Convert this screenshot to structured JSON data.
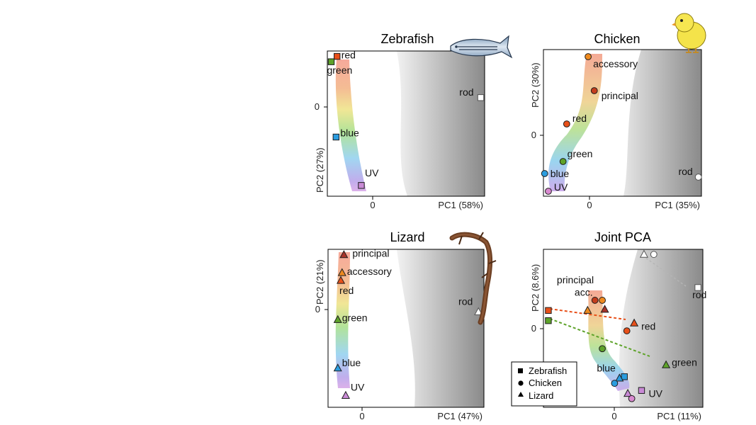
{
  "figure": {
    "axis_tick_zero": "0"
  },
  "legend": {
    "zebrafish": "Zebrafish",
    "chicken": "Chicken",
    "lizard": "Lizard"
  },
  "chart_data": [
    {
      "type": "scatter",
      "title": "Zebrafish",
      "xlabel": "PC1 (58%)",
      "ylabel": "PC2 (27%)",
      "xlim": [
        -0.62,
        1.0
      ],
      "ylim": [
        -1.0,
        0.62
      ],
      "icon": "zebrafish-icon",
      "points": [
        {
          "label": "red",
          "x": -0.52,
          "y": 0.56,
          "shape": "square",
          "color": "#e8501a"
        },
        {
          "label": "green",
          "x": -0.58,
          "y": 0.5,
          "shape": "square",
          "color": "#5ea32a"
        },
        {
          "label": "rod",
          "x": 0.96,
          "y": 0.1,
          "shape": "square",
          "color": "#ffffff"
        },
        {
          "label": "blue",
          "x": -0.53,
          "y": -0.34,
          "shape": "square",
          "color": "#2b9de0"
        },
        {
          "label": "UV",
          "x": -0.27,
          "y": -0.88,
          "shape": "square",
          "color": "#c98ad6"
        }
      ]
    },
    {
      "type": "scatter",
      "title": "Chicken",
      "xlabel": "PC1 (35%)",
      "ylabel": "PC2 (30%)",
      "xlim": [
        -0.68,
        1.9
      ],
      "ylim": [
        -0.82,
        1.25
      ],
      "icon": "chick-icon",
      "points": [
        {
          "label": "accessory",
          "x": 0.05,
          "y": 1.15,
          "shape": "circle",
          "color": "#ef8a1f"
        },
        {
          "label": "principal",
          "x": 0.15,
          "y": 0.67,
          "shape": "circle",
          "color": "#c43d1d"
        },
        {
          "label": "red",
          "x": -0.3,
          "y": 0.2,
          "shape": "circle",
          "color": "#e8501a"
        },
        {
          "label": "green",
          "x": -0.36,
          "y": -0.33,
          "shape": "circle",
          "color": "#5ea32a"
        },
        {
          "label": "blue",
          "x": -0.66,
          "y": -0.5,
          "shape": "circle",
          "color": "#2b9de0"
        },
        {
          "label": "UV",
          "x": -0.6,
          "y": -0.75,
          "shape": "circle",
          "color": "#d98ad0"
        },
        {
          "label": "rod",
          "x": 1.85,
          "y": -0.55,
          "shape": "circle",
          "color": "#ffffff"
        }
      ]
    },
    {
      "type": "scatter",
      "title": "Lizard",
      "xlabel": "PC1 (47%)",
      "ylabel": "PC2 (21%)",
      "xlim": [
        -0.52,
        2.04
      ],
      "ylim": [
        -1.2,
        0.82
      ],
      "icon": "lizard-icon",
      "points": [
        {
          "label": "principal",
          "x": -0.26,
          "y": 0.75,
          "shape": "triangle",
          "color": "#a8332a"
        },
        {
          "label": "accessory",
          "x": -0.29,
          "y": 0.52,
          "shape": "triangle",
          "color": "#ef8a1f"
        },
        {
          "label": "red",
          "x": -0.31,
          "y": 0.42,
          "shape": "triangle",
          "color": "#e8501a"
        },
        {
          "label": "green",
          "x": -0.36,
          "y": -0.08,
          "shape": "triangle",
          "color": "#5ea32a"
        },
        {
          "label": "blue",
          "x": -0.36,
          "y": -0.7,
          "shape": "triangle",
          "color": "#2b9de0"
        },
        {
          "label": "UV",
          "x": -0.23,
          "y": -1.05,
          "shape": "triangle",
          "color": "#c98ad6"
        },
        {
          "label": "rod",
          "x": 1.95,
          "y": 0.02,
          "shape": "triangle",
          "color": "#ffffff"
        }
      ]
    },
    {
      "type": "scatter",
      "title": "Joint PCA",
      "xlabel": "PC1 (11%)",
      "ylabel": "PC2 (8.6%)",
      "xlim": [
        -1.6,
        1.65
      ],
      "ylim": [
        -1.45,
        1.65
      ],
      "legend_position": "bottom-left",
      "points": [
        {
          "label": "",
          "x": 0.45,
          "y": 1.55,
          "shape": "triangle",
          "color": "#ffffff"
        },
        {
          "label": "",
          "x": 0.65,
          "y": 1.55,
          "shape": "circle",
          "color": "#ffffff"
        },
        {
          "label": "rod",
          "x": 1.55,
          "y": 0.9,
          "shape": "square",
          "color": "#ffffff"
        },
        {
          "label": "",
          "x": -0.55,
          "y": 0.65,
          "shape": "circle",
          "color": "#c43d1d"
        },
        {
          "label": "",
          "x": -0.4,
          "y": 0.65,
          "shape": "circle",
          "color": "#ef8a1f"
        },
        {
          "label": "",
          "x": -0.7,
          "y": 0.45,
          "shape": "triangle",
          "color": "#ef8a1f"
        },
        {
          "label": "",
          "x": -0.35,
          "y": 0.47,
          "shape": "triangle",
          "color": "#a8332a"
        },
        {
          "label": "",
          "x": -1.5,
          "y": 0.45,
          "shape": "square",
          "color": "#e8501a"
        },
        {
          "label": "red",
          "x": 0.25,
          "y": 0.2,
          "shape": "triangle",
          "color": "#e8501a"
        },
        {
          "label": "",
          "x": 0.1,
          "y": 0.05,
          "shape": "circle",
          "color": "#e8501a"
        },
        {
          "label": "",
          "x": -1.5,
          "y": 0.25,
          "shape": "square",
          "color": "#5ea32a"
        },
        {
          "label": "",
          "x": -0.4,
          "y": -0.3,
          "shape": "circle",
          "color": "#5ea32a"
        },
        {
          "label": "green",
          "x": 0.9,
          "y": -0.62,
          "shape": "triangle",
          "color": "#5ea32a"
        },
        {
          "label": "",
          "x": 0.05,
          "y": -0.85,
          "shape": "square",
          "color": "#2b9de0"
        },
        {
          "label": "",
          "x": -0.05,
          "y": -0.88,
          "shape": "triangle",
          "color": "#2b9de0"
        },
        {
          "label": "",
          "x": -0.15,
          "y": -0.98,
          "shape": "circle",
          "color": "#2b9de0"
        },
        {
          "label": "UV",
          "x": 0.4,
          "y": -1.12,
          "shape": "square",
          "color": "#c98ad6"
        },
        {
          "label": "",
          "x": 0.12,
          "y": -1.18,
          "shape": "triangle",
          "color": "#c98ad6"
        },
        {
          "label": "",
          "x": 0.2,
          "y": -1.28,
          "shape": "circle",
          "color": "#d98ad0"
        }
      ],
      "annotations": [
        {
          "text": "principal",
          "x": -0.95,
          "y": 0.98
        },
        {
          "text": "acc.",
          "x": -0.78,
          "y": 0.74
        },
        {
          "text": "blue",
          "x": -0.32,
          "y": -0.75
        }
      ]
    }
  ]
}
